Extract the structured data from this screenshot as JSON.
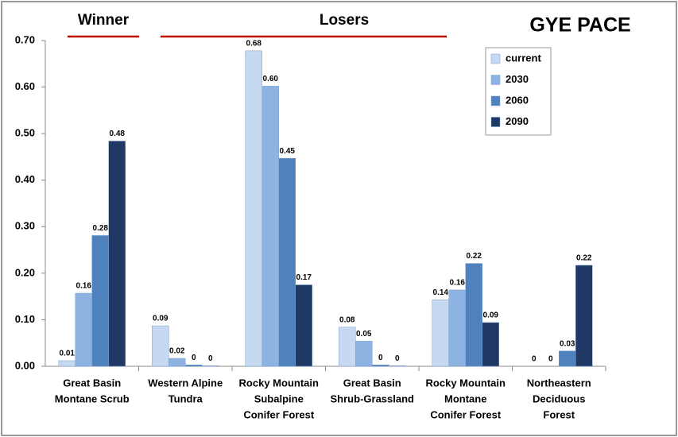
{
  "chart_data": {
    "type": "bar",
    "title": "GYE PACE",
    "annotations": [
      "Winner",
      "Losers"
    ],
    "categories": [
      [
        "Great Basin",
        "Montane Scrub"
      ],
      [
        "Western Alpine",
        "Tundra"
      ],
      [
        "Rocky Mountain",
        "Subalpine",
        "Conifer Forest"
      ],
      [
        "Great Basin",
        "Shrub-Grassland"
      ],
      [
        "Rocky Mountain",
        "Montane",
        "Conifer Forest"
      ],
      [
        "Northeastern",
        "Deciduous",
        "Forest"
      ]
    ],
    "series": [
      {
        "name": "current",
        "color": "#c6d9f0",
        "values": [
          0.012,
          0.087,
          0.678,
          0.084,
          0.143,
          0
        ],
        "value_labels": [
          "0.01",
          "0.09",
          "0.68",
          "0.08",
          "0.14",
          "0"
        ]
      },
      {
        "name": "2030",
        "color": "#8db3e2",
        "values": [
          0.157,
          0.017,
          0.602,
          0.054,
          0.164,
          0
        ],
        "value_labels": [
          "0.16",
          "0.02",
          "0.60",
          "0.05",
          "0.16",
          "0"
        ]
      },
      {
        "name": "2060",
        "color": "#4f81bd",
        "values": [
          0.281,
          0.003,
          0.447,
          0.003,
          0.221,
          0.033
        ],
        "value_labels": [
          "0.28",
          "0",
          "0.45",
          "0",
          "0.22",
          "0.03"
        ]
      },
      {
        "name": "2090",
        "color": "#1f3864",
        "values": [
          0.484,
          0.001,
          0.175,
          0.001,
          0.094,
          0.217
        ],
        "value_labels": [
          "0.48",
          "0",
          "0.17",
          "0",
          "0.09",
          "0.22"
        ]
      }
    ],
    "ylim": [
      0,
      0.7
    ],
    "yticks": [
      {
        "value": 0,
        "label": "0.00"
      },
      {
        "value": 0.1,
        "label": "0.10"
      },
      {
        "value": 0.2,
        "label": "0.20"
      },
      {
        "value": 0.3,
        "label": "0.30"
      },
      {
        "value": 0.4,
        "label": "0.40"
      },
      {
        "value": 0.5,
        "label": "0.50"
      },
      {
        "value": 0.6,
        "label": "0.60"
      },
      {
        "value": 0.7,
        "label": "0.70"
      }
    ],
    "legend": "top-right"
  }
}
